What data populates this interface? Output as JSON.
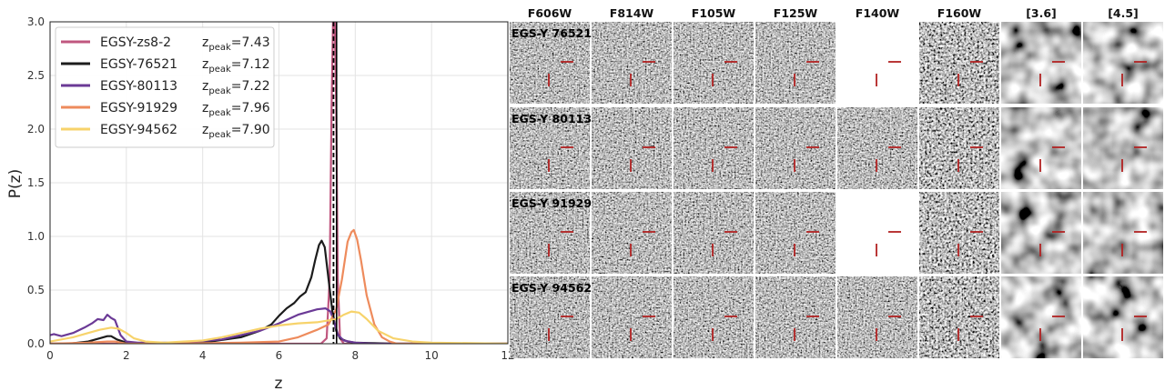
{
  "chart_data": {
    "type": "line",
    "xlabel": "z",
    "ylabel": "P(z)",
    "xlim": [
      0,
      12
    ],
    "ylim": [
      0,
      3.0
    ],
    "xticks": [
      0,
      2,
      4,
      6,
      8,
      10,
      12
    ],
    "yticks": [
      0.0,
      0.5,
      1.0,
      1.5,
      2.0,
      2.5,
      3.0
    ],
    "grid": true,
    "legend_position": "top-left",
    "vlines": [
      {
        "x": 7.43,
        "style": "dashed",
        "color": "#000000"
      },
      {
        "x": 7.51,
        "style": "solid",
        "color": "#000000"
      }
    ],
    "series": [
      {
        "name": "EGSY-zs8-2",
        "peak_sub": "peak",
        "peak_value": "=7.43",
        "color": "#c0577f",
        "x": [
          0,
          6.8,
          7.1,
          7.25,
          7.33,
          7.38,
          7.42,
          7.46,
          7.5,
          7.54,
          7.6,
          7.7,
          8,
          12
        ],
        "y": [
          0,
          0,
          0,
          0.05,
          0.6,
          2.2,
          3.05,
          3.05,
          2.2,
          0.6,
          0.05,
          0,
          0,
          0
        ]
      },
      {
        "name": "EGSY-76521",
        "peak_sub": "peak",
        "peak_value": "=7.12",
        "color": "#1c1c1c",
        "x": [
          0,
          0.5,
          1.0,
          1.3,
          1.5,
          1.6,
          1.75,
          2.0,
          2.5,
          3.0,
          4.0,
          5.0,
          5.5,
          5.8,
          6.0,
          6.2,
          6.4,
          6.55,
          6.7,
          6.85,
          6.95,
          7.05,
          7.12,
          7.2,
          7.3,
          7.4,
          7.5,
          7.6,
          7.8,
          8.0,
          9,
          12
        ],
        "y": [
          0,
          0,
          0.02,
          0.05,
          0.07,
          0.07,
          0.04,
          0.01,
          0,
          0,
          0.01,
          0.06,
          0.12,
          0.18,
          0.26,
          0.33,
          0.38,
          0.44,
          0.48,
          0.62,
          0.78,
          0.92,
          0.96,
          0.9,
          0.6,
          0.3,
          0.12,
          0.05,
          0.02,
          0.01,
          0,
          0
        ]
      },
      {
        "name": "EGSY-80113",
        "peak_sub": "peak",
        "peak_value": "=7.22",
        "color": "#6b3a96",
        "x": [
          0,
          0.1,
          0.3,
          0.6,
          0.9,
          1.1,
          1.25,
          1.4,
          1.5,
          1.6,
          1.7,
          1.85,
          2.0,
          2.3,
          2.7,
          3.5,
          4.5,
          5.5,
          6.0,
          6.5,
          7.0,
          7.22,
          7.35,
          7.45,
          7.55,
          7.7,
          8.0,
          8.5,
          9,
          12
        ],
        "y": [
          0.08,
          0.09,
          0.07,
          0.1,
          0.15,
          0.19,
          0.23,
          0.22,
          0.27,
          0.24,
          0.22,
          0.08,
          0.02,
          0.01,
          0.01,
          0.01,
          0.04,
          0.12,
          0.19,
          0.27,
          0.32,
          0.33,
          0.3,
          0.2,
          0.08,
          0.03,
          0.01,
          0,
          0,
          0
        ]
      },
      {
        "name": "EGSY-91929",
        "peak_sub": "peak",
        "peak_value": "=7.96",
        "color": "#ee8b5c",
        "x": [
          0,
          1,
          1.5,
          1.7,
          2,
          3,
          5,
          6,
          6.5,
          7,
          7.3,
          7.5,
          7.65,
          7.8,
          7.9,
          7.96,
          8.05,
          8.15,
          8.3,
          8.5,
          8.7,
          8.9,
          9.1,
          12
        ],
        "y": [
          0,
          0.01,
          0.02,
          0.02,
          0,
          0,
          0.01,
          0.02,
          0.06,
          0.13,
          0.18,
          0.32,
          0.6,
          0.95,
          1.04,
          1.06,
          0.97,
          0.78,
          0.45,
          0.18,
          0.06,
          0.02,
          0,
          0
        ]
      },
      {
        "name": "EGSY-94562",
        "peak_sub": "peak",
        "peak_value": "=7.90",
        "color": "#f7d36b",
        "x": [
          0,
          0.6,
          1.0,
          1.3,
          1.6,
          1.8,
          2.0,
          2.2,
          2.5,
          3,
          3.5,
          4,
          4.5,
          5,
          5.5,
          6,
          6.5,
          7,
          7.5,
          7.7,
          7.9,
          8.1,
          8.3,
          8.6,
          9.0,
          9.5,
          10,
          12
        ],
        "y": [
          0.02,
          0.06,
          0.1,
          0.13,
          0.15,
          0.14,
          0.1,
          0.05,
          0.02,
          0.01,
          0.02,
          0.03,
          0.06,
          0.1,
          0.14,
          0.17,
          0.19,
          0.2,
          0.23,
          0.27,
          0.3,
          0.29,
          0.23,
          0.12,
          0.05,
          0.02,
          0.01,
          0
        ]
      }
    ]
  },
  "stamps": {
    "columns": [
      "F606W",
      "F814W",
      "F105W",
      "F125W",
      "F140W",
      "F160W",
      "[3.6]",
      "[4.5]"
    ],
    "rows": [
      {
        "label": "EGS-Y 76521",
        "blank": [
          false,
          false,
          false,
          false,
          true,
          false,
          false,
          false
        ]
      },
      {
        "label": "EGS-Y 80113",
        "blank": [
          false,
          false,
          false,
          false,
          false,
          false,
          false,
          false
        ]
      },
      {
        "label": "EGS-Y 91929",
        "blank": [
          false,
          false,
          false,
          false,
          true,
          false,
          false,
          false
        ]
      },
      {
        "label": "EGS-Y 94562",
        "blank": [
          false,
          false,
          false,
          false,
          false,
          false,
          false,
          false
        ]
      }
    ],
    "marker_color": "#b22222"
  }
}
